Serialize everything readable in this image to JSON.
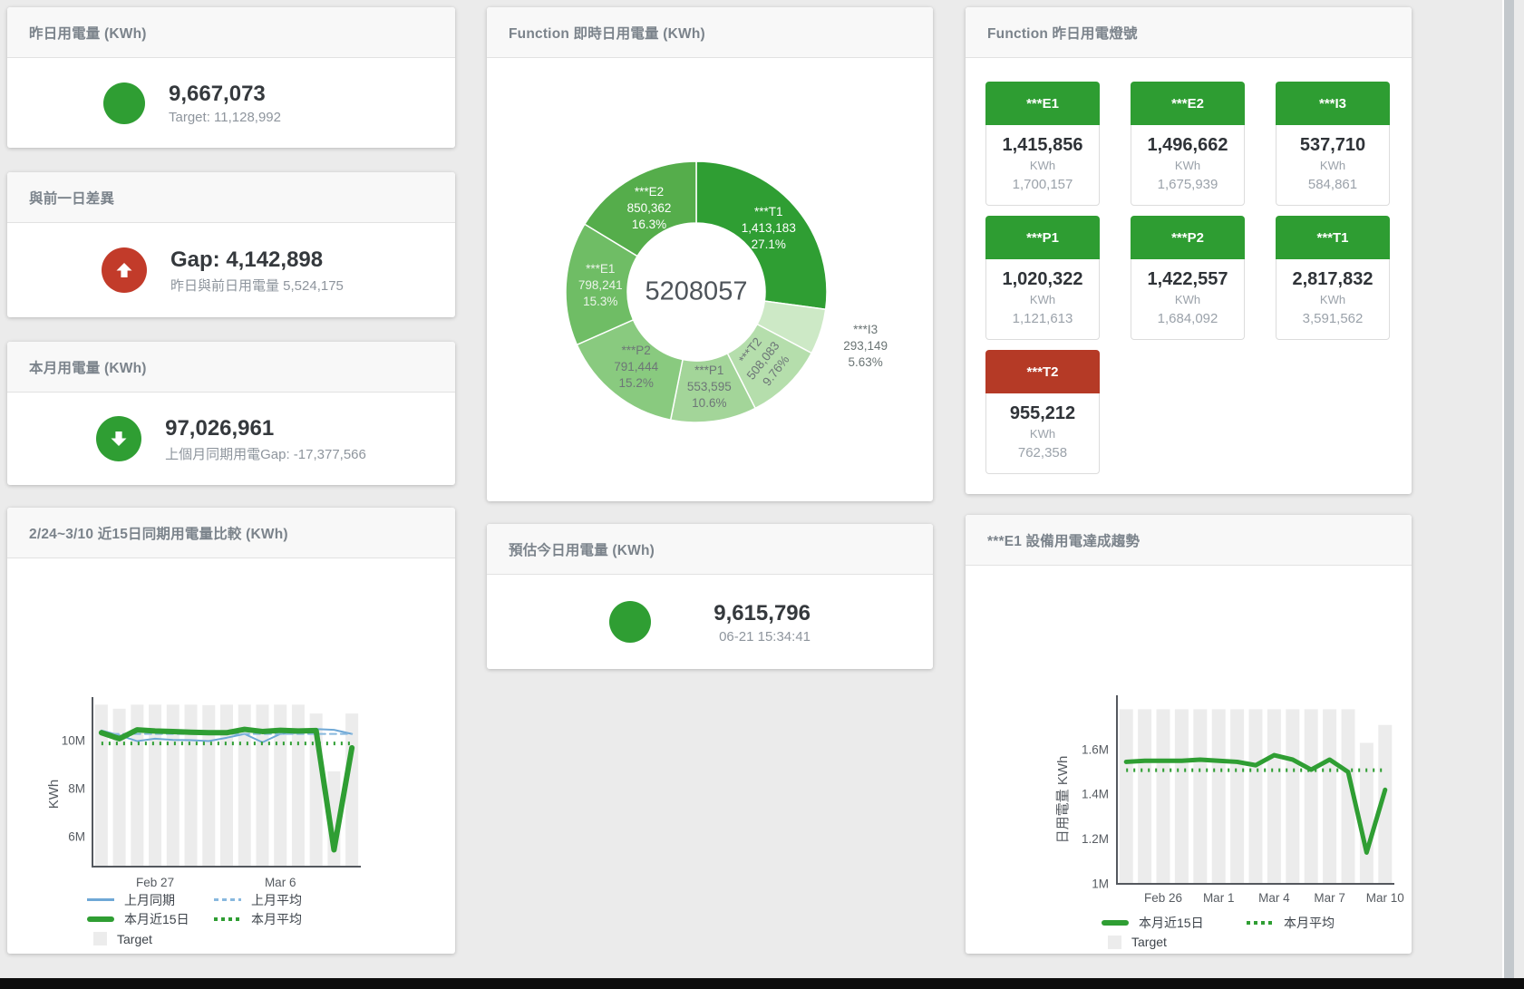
{
  "palette": {
    "green": "#2f9e33",
    "red": "#c23b2a",
    "tile_green": "#2e9d32",
    "tile_red": "#b53a26",
    "target_gray": "#ececec",
    "blue": "#6fa8d6",
    "blue_light": "#88b8de"
  },
  "cards": {
    "yesterday": {
      "title": "昨日用電量 (KWh)",
      "value": "9,667,073",
      "subtitle": "Target: 11,128,992",
      "status": "green"
    },
    "diff_prev_day": {
      "title": "與前一日差異",
      "value": "Gap: 4,142,898",
      "subtitle": "昨日與前日用電量 5,524,175",
      "status": "red",
      "direction": "up"
    },
    "month_usage": {
      "title": "本月用電量 (KWh)",
      "value": "97,026,961",
      "subtitle": "上個月同期用電Gap: -17,377,566",
      "status": "green",
      "direction": "down"
    },
    "estimate_today": {
      "title": "預估今日用電量 (KWh)",
      "value": "9,615,796",
      "subtitle": "06-21 15:34:41",
      "status": "green"
    },
    "lights": {
      "title": "Function 昨日用電燈號",
      "unit": "KWh",
      "tiles": [
        {
          "name": "***E1",
          "value": "1,415,856",
          "target": "1,700,157",
          "status": "green"
        },
        {
          "name": "***E2",
          "value": "1,496,662",
          "target": "1,675,939",
          "status": "green"
        },
        {
          "name": "***I3",
          "value": "537,710",
          "target": "584,861",
          "status": "green"
        },
        {
          "name": "***P1",
          "value": "1,020,322",
          "target": "1,121,613",
          "status": "green"
        },
        {
          "name": "***P2",
          "value": "1,422,557",
          "target": "1,684,092",
          "status": "green"
        },
        {
          "name": "***T1",
          "value": "2,817,832",
          "target": "3,591,562",
          "status": "green"
        },
        {
          "name": "***T2",
          "value": "955,212",
          "target": "762,358",
          "status": "red"
        }
      ]
    }
  },
  "chart_data": [
    {
      "type": "pie",
      "title": "Function 即時日用電量 (KWh)",
      "center_total": "5208057",
      "segments": [
        {
          "name": "***T1",
          "value": 1413183,
          "display": "1,413,183",
          "pct": "27.1%",
          "pct_num": 27.1,
          "color": "#2f9e33",
          "label_color": "#ffffff"
        },
        {
          "name": "***I3",
          "value": 293149,
          "display": "293,149",
          "pct": "5.63%",
          "pct_num": 5.63,
          "color": "#cde9c6",
          "label_color": "#6a7474",
          "outside": true
        },
        {
          "name": "***T2",
          "value": 508083,
          "display": "508,083",
          "pct": "9.76%",
          "pct_num": 9.76,
          "color": "#b5deac",
          "label_color": "#6d7677",
          "rotate": -52
        },
        {
          "name": "***P1",
          "value": 553595,
          "display": "553,595",
          "pct": "10.6%",
          "pct_num": 10.6,
          "color": "#a3d599",
          "label_color": "#6d7677"
        },
        {
          "name": "***P2",
          "value": 791444,
          "display": "791,444",
          "pct": "15.2%",
          "pct_num": 15.2,
          "color": "#89ca7f",
          "label_color": "#6d7677"
        },
        {
          "name": "***E1",
          "value": 798241,
          "display": "798,241",
          "pct": "15.3%",
          "pct_num": 15.3,
          "color": "#6fbd65",
          "label_color": "#ecf4ea"
        },
        {
          "name": "***E2",
          "value": 850362,
          "display": "850,362",
          "pct": "16.3%",
          "pct_num": 16.3,
          "color": "#55ad4b",
          "label_color": "#ffffff"
        }
      ]
    },
    {
      "type": "line",
      "title": "2/24~3/10 近15日同期用電量比較 (KWh)",
      "ylabel": "KWh",
      "n": 15,
      "ylim": [
        4.75,
        11.7
      ],
      "yticks": [
        {
          "label": "6M",
          "v": 6
        },
        {
          "label": "8M",
          "v": 8
        },
        {
          "label": "10M",
          "v": 10
        }
      ],
      "xticks": [
        {
          "label": "Feb 27",
          "i": 3
        },
        {
          "label": "Mar 6",
          "i": 10
        }
      ],
      "target_name": "Target",
      "target_color": "#ececec",
      "target_bars": [
        11.5,
        11.33,
        11.5,
        11.5,
        11.5,
        11.5,
        11.48,
        11.5,
        11.5,
        11.5,
        11.5,
        11.5,
        11.13,
        8.72,
        11.13
      ],
      "series": [
        {
          "name": "上月同期",
          "style": "solid",
          "color": "#6fa8d6",
          "width": 2,
          "values": [
            10.42,
            10.22,
            9.98,
            10.08,
            10.03,
            10.02,
            9.98,
            10.12,
            10.28,
            9.93,
            10.28,
            10.32,
            10.48,
            10.45,
            10.28
          ]
        },
        {
          "name": "上月平均",
          "style": "dashed",
          "color": "#88b8de",
          "width": 2,
          "const": 10.28
        },
        {
          "name": "本月平均",
          "style": "dotted",
          "color": "#2f9e33",
          "width": 4,
          "const": 9.88
        },
        {
          "name": "本月近15日",
          "style": "solid",
          "color": "#2f9e33",
          "width": 6,
          "values": [
            10.33,
            10.08,
            10.45,
            10.4,
            10.38,
            10.35,
            10.33,
            10.33,
            10.47,
            10.38,
            10.43,
            10.4,
            10.42,
            5.45,
            9.7
          ]
        }
      ],
      "legend": [
        {
          "label": "上月同期",
          "swatch": "line",
          "color": "#6fa8d6"
        },
        {
          "label": "上月平均",
          "swatch": "dashed",
          "color": "#88b8de"
        },
        {
          "label": "本月近15日",
          "swatch": "thick",
          "color": "#2f9e33"
        },
        {
          "label": "本月平均",
          "swatch": "dotted",
          "color": "#2f9e33"
        },
        {
          "label": "Target",
          "swatch": "box",
          "color": "#ececec"
        }
      ]
    },
    {
      "type": "line",
      "title": "***E1 設備用電達成趨勢",
      "ylabel": "日用電量 KWh",
      "n": 15,
      "ylim": [
        1.0,
        1.806
      ],
      "yticks": [
        {
          "label": "1M",
          "v": 1
        },
        {
          "label": "1.2M",
          "v": 1.2
        },
        {
          "label": "1.4M",
          "v": 1.4
        },
        {
          "label": "1.6M",
          "v": 1.6
        }
      ],
      "xticks": [
        {
          "label": "Feb 26",
          "i": 2
        },
        {
          "label": "Mar 1",
          "i": 5
        },
        {
          "label": "Mar 4",
          "i": 8
        },
        {
          "label": "Mar 7",
          "i": 11
        },
        {
          "label": "Mar 10",
          "i": 14
        }
      ],
      "target_name": "Target",
      "target_color": "#ececec",
      "target_bars": [
        1.78,
        1.78,
        1.78,
        1.78,
        1.78,
        1.78,
        1.78,
        1.78,
        1.78,
        1.78,
        1.78,
        1.78,
        1.78,
        1.63,
        1.71
      ],
      "series": [
        {
          "name": "本月平均",
          "style": "dotted",
          "color": "#2f9e33",
          "width": 4,
          "const": 1.508
        },
        {
          "name": "本月近15日",
          "style": "solid",
          "color": "#2f9e33",
          "width": 5,
          "values": [
            1.545,
            1.55,
            1.55,
            1.55,
            1.555,
            1.55,
            1.545,
            1.53,
            1.575,
            1.555,
            1.51,
            1.555,
            1.5,
            1.14,
            1.42
          ]
        }
      ],
      "legend": [
        {
          "label": "本月近15日",
          "swatch": "thick",
          "color": "#2f9e33"
        },
        {
          "label": "本月平均",
          "swatch": "dotted",
          "color": "#2f9e33"
        },
        {
          "label": "Target",
          "swatch": "box",
          "color": "#ececec"
        }
      ]
    }
  ]
}
